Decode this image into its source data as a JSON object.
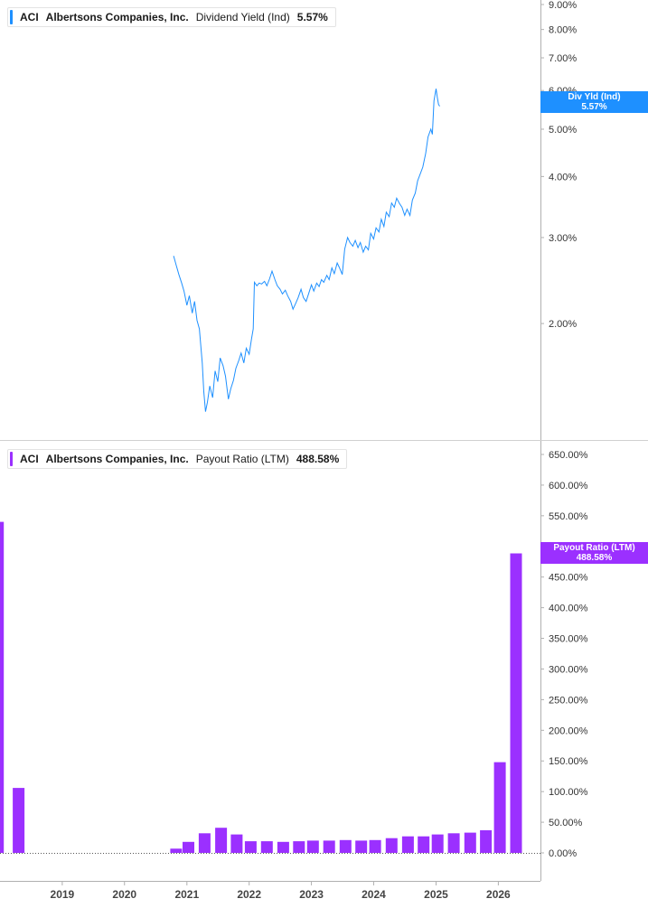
{
  "colors": {
    "yield": "#1e90ff",
    "payout": "#9b30ff",
    "axis": "#b0b0b0",
    "text": "#333333"
  },
  "top_panel": {
    "legend": {
      "ticker": "ACI",
      "company": "Albertsons Companies, Inc.",
      "metric": "Dividend Yield (Ind)",
      "value": "5.57%"
    },
    "tag": {
      "label": "Div Yld (Ind)",
      "value": "5.57%"
    }
  },
  "bottom_panel": {
    "legend": {
      "ticker": "ACI",
      "company": "Albertsons Companies, Inc.",
      "metric": "Payout Ratio (LTM)",
      "value": "488.58%"
    },
    "tag": {
      "label": "Payout Ratio (LTM)",
      "value": "488.58%"
    }
  },
  "chart_data": [
    {
      "type": "line",
      "series_name": "Dividend Yield (Ind)",
      "scale": "log",
      "ylim": [
        1.2,
        9.0
      ],
      "xlim": [
        "2018-01-01",
        "2026-09-05"
      ],
      "ytick_labels": [
        "2.00%",
        "3.00%",
        "4.00%",
        "5.00%",
        "6.00%",
        "7.00%",
        "8.00%",
        "9.00%"
      ],
      "yticks": [
        2,
        3,
        4,
        5,
        6,
        7,
        8,
        9
      ],
      "points": [
        [
          "2020-10-15",
          2.75
        ],
        [
          "2020-11-01",
          2.62
        ],
        [
          "2020-11-15",
          2.52
        ],
        [
          "2020-12-01",
          2.42
        ],
        [
          "2020-12-15",
          2.33
        ],
        [
          "2021-01-01",
          2.18
        ],
        [
          "2021-01-15",
          2.28
        ],
        [
          "2021-02-01",
          2.1
        ],
        [
          "2021-02-15",
          2.22
        ],
        [
          "2021-03-01",
          2.03
        ],
        [
          "2021-03-15",
          1.95
        ],
        [
          "2021-04-01",
          1.66
        ],
        [
          "2021-04-10",
          1.45
        ],
        [
          "2021-04-20",
          1.32
        ],
        [
          "2021-05-01",
          1.38
        ],
        [
          "2021-05-15",
          1.49
        ],
        [
          "2021-06-01",
          1.41
        ],
        [
          "2021-06-15",
          1.6
        ],
        [
          "2021-07-01",
          1.52
        ],
        [
          "2021-07-15",
          1.7
        ],
        [
          "2021-08-01",
          1.64
        ],
        [
          "2021-08-15",
          1.56
        ],
        [
          "2021-09-01",
          1.4
        ],
        [
          "2021-09-15",
          1.47
        ],
        [
          "2021-10-01",
          1.53
        ],
        [
          "2021-10-15",
          1.62
        ],
        [
          "2021-11-01",
          1.68
        ],
        [
          "2021-11-15",
          1.74
        ],
        [
          "2021-12-01",
          1.66
        ],
        [
          "2021-12-15",
          1.78
        ],
        [
          "2022-01-01",
          1.73
        ],
        [
          "2022-01-15",
          1.86
        ],
        [
          "2022-01-25",
          1.95
        ],
        [
          "2022-02-01",
          2.43
        ],
        [
          "2022-02-15",
          2.39
        ],
        [
          "2022-03-01",
          2.42
        ],
        [
          "2022-03-15",
          2.41
        ],
        [
          "2022-04-01",
          2.44
        ],
        [
          "2022-04-15",
          2.39
        ],
        [
          "2022-05-01",
          2.47
        ],
        [
          "2022-05-15",
          2.56
        ],
        [
          "2022-06-01",
          2.46
        ],
        [
          "2022-06-15",
          2.39
        ],
        [
          "2022-07-01",
          2.35
        ],
        [
          "2022-07-15",
          2.3
        ],
        [
          "2022-08-01",
          2.34
        ],
        [
          "2022-08-15",
          2.28
        ],
        [
          "2022-09-01",
          2.22
        ],
        [
          "2022-09-15",
          2.14
        ],
        [
          "2022-10-01",
          2.2
        ],
        [
          "2022-10-15",
          2.26
        ],
        [
          "2022-11-01",
          2.35
        ],
        [
          "2022-11-15",
          2.26
        ],
        [
          "2022-12-01",
          2.22
        ],
        [
          "2022-12-15",
          2.3
        ],
        [
          "2023-01-01",
          2.4
        ],
        [
          "2023-01-15",
          2.33
        ],
        [
          "2023-02-01",
          2.42
        ],
        [
          "2023-02-15",
          2.38
        ],
        [
          "2023-03-01",
          2.46
        ],
        [
          "2023-03-15",
          2.43
        ],
        [
          "2023-04-01",
          2.51
        ],
        [
          "2023-04-15",
          2.46
        ],
        [
          "2023-05-01",
          2.6
        ],
        [
          "2023-05-15",
          2.53
        ],
        [
          "2023-06-01",
          2.66
        ],
        [
          "2023-06-15",
          2.6
        ],
        [
          "2023-07-01",
          2.52
        ],
        [
          "2023-07-15",
          2.84
        ],
        [
          "2023-08-01",
          3.0
        ],
        [
          "2023-08-15",
          2.93
        ],
        [
          "2023-09-01",
          2.88
        ],
        [
          "2023-09-15",
          2.96
        ],
        [
          "2023-10-01",
          2.86
        ],
        [
          "2023-10-15",
          2.93
        ],
        [
          "2023-11-01",
          2.8
        ],
        [
          "2023-11-15",
          2.88
        ],
        [
          "2023-12-01",
          2.83
        ],
        [
          "2023-12-15",
          3.06
        ],
        [
          "2024-01-01",
          2.98
        ],
        [
          "2024-01-15",
          3.14
        ],
        [
          "2024-02-01",
          3.08
        ],
        [
          "2024-02-15",
          3.27
        ],
        [
          "2024-03-01",
          3.16
        ],
        [
          "2024-03-15",
          3.38
        ],
        [
          "2024-04-01",
          3.31
        ],
        [
          "2024-04-15",
          3.53
        ],
        [
          "2024-05-01",
          3.46
        ],
        [
          "2024-05-15",
          3.61
        ],
        [
          "2024-06-01",
          3.52
        ],
        [
          "2024-06-15",
          3.46
        ],
        [
          "2024-07-01",
          3.33
        ],
        [
          "2024-07-15",
          3.43
        ],
        [
          "2024-08-01",
          3.33
        ],
        [
          "2024-08-15",
          3.58
        ],
        [
          "2024-09-01",
          3.7
        ],
        [
          "2024-09-15",
          3.92
        ],
        [
          "2024-10-01",
          4.06
        ],
        [
          "2024-10-15",
          4.18
        ],
        [
          "2024-11-01",
          4.46
        ],
        [
          "2024-11-15",
          4.82
        ],
        [
          "2024-12-01",
          5.0
        ],
        [
          "2024-12-10",
          4.88
        ],
        [
          "2024-12-20",
          5.72
        ],
        [
          "2025-01-01",
          6.05
        ],
        [
          "2025-01-08",
          5.82
        ],
        [
          "2025-01-15",
          5.62
        ],
        [
          "2025-01-22",
          5.57
        ]
      ]
    },
    {
      "type": "bar",
      "series_name": "Payout Ratio (LTM)",
      "ylim": [
        0,
        650
      ],
      "ytick_labels": [
        "0.00%",
        "50.00%",
        "100.00%",
        "150.00%",
        "200.00%",
        "250.00%",
        "300.00%",
        "350.00%",
        "400.00%",
        "450.00%",
        "500.00%",
        "550.00%",
        "600.00%",
        "650.00%"
      ],
      "yticks": [
        0,
        50,
        100,
        150,
        200,
        250,
        300,
        350,
        400,
        450,
        500,
        550,
        600,
        650
      ],
      "xtick_labels": [
        "2019",
        "2020",
        "2021",
        "2022",
        "2023",
        "2024",
        "2025",
        "2026"
      ],
      "xticks": [
        "2019-01-01",
        "2020-01-01",
        "2021-01-01",
        "2022-01-01",
        "2023-01-01",
        "2024-01-01",
        "2025-01-01",
        "2026-01-01"
      ],
      "bars": [
        [
          "2017-12-20",
          540
        ],
        [
          "2018-04-20",
          106
        ],
        [
          "2020-10-30",
          7
        ],
        [
          "2021-01-10",
          18
        ],
        [
          "2021-04-15",
          32
        ],
        [
          "2021-07-20",
          41
        ],
        [
          "2021-10-20",
          30
        ],
        [
          "2022-01-10",
          19
        ],
        [
          "2022-04-15",
          19
        ],
        [
          "2022-07-20",
          18
        ],
        [
          "2022-10-20",
          19
        ],
        [
          "2023-01-10",
          20
        ],
        [
          "2023-04-15",
          20
        ],
        [
          "2023-07-20",
          21
        ],
        [
          "2023-10-20",
          20
        ],
        [
          "2024-01-10",
          21
        ],
        [
          "2024-04-15",
          24
        ],
        [
          "2024-07-20",
          27
        ],
        [
          "2024-10-20",
          27
        ],
        [
          "2025-01-10",
          30
        ],
        [
          "2025-04-15",
          32
        ],
        [
          "2025-07-20",
          33
        ],
        [
          "2025-10-20",
          37
        ],
        [
          "2026-01-10",
          148
        ],
        [
          "2026-04-15",
          488.58
        ]
      ]
    }
  ]
}
